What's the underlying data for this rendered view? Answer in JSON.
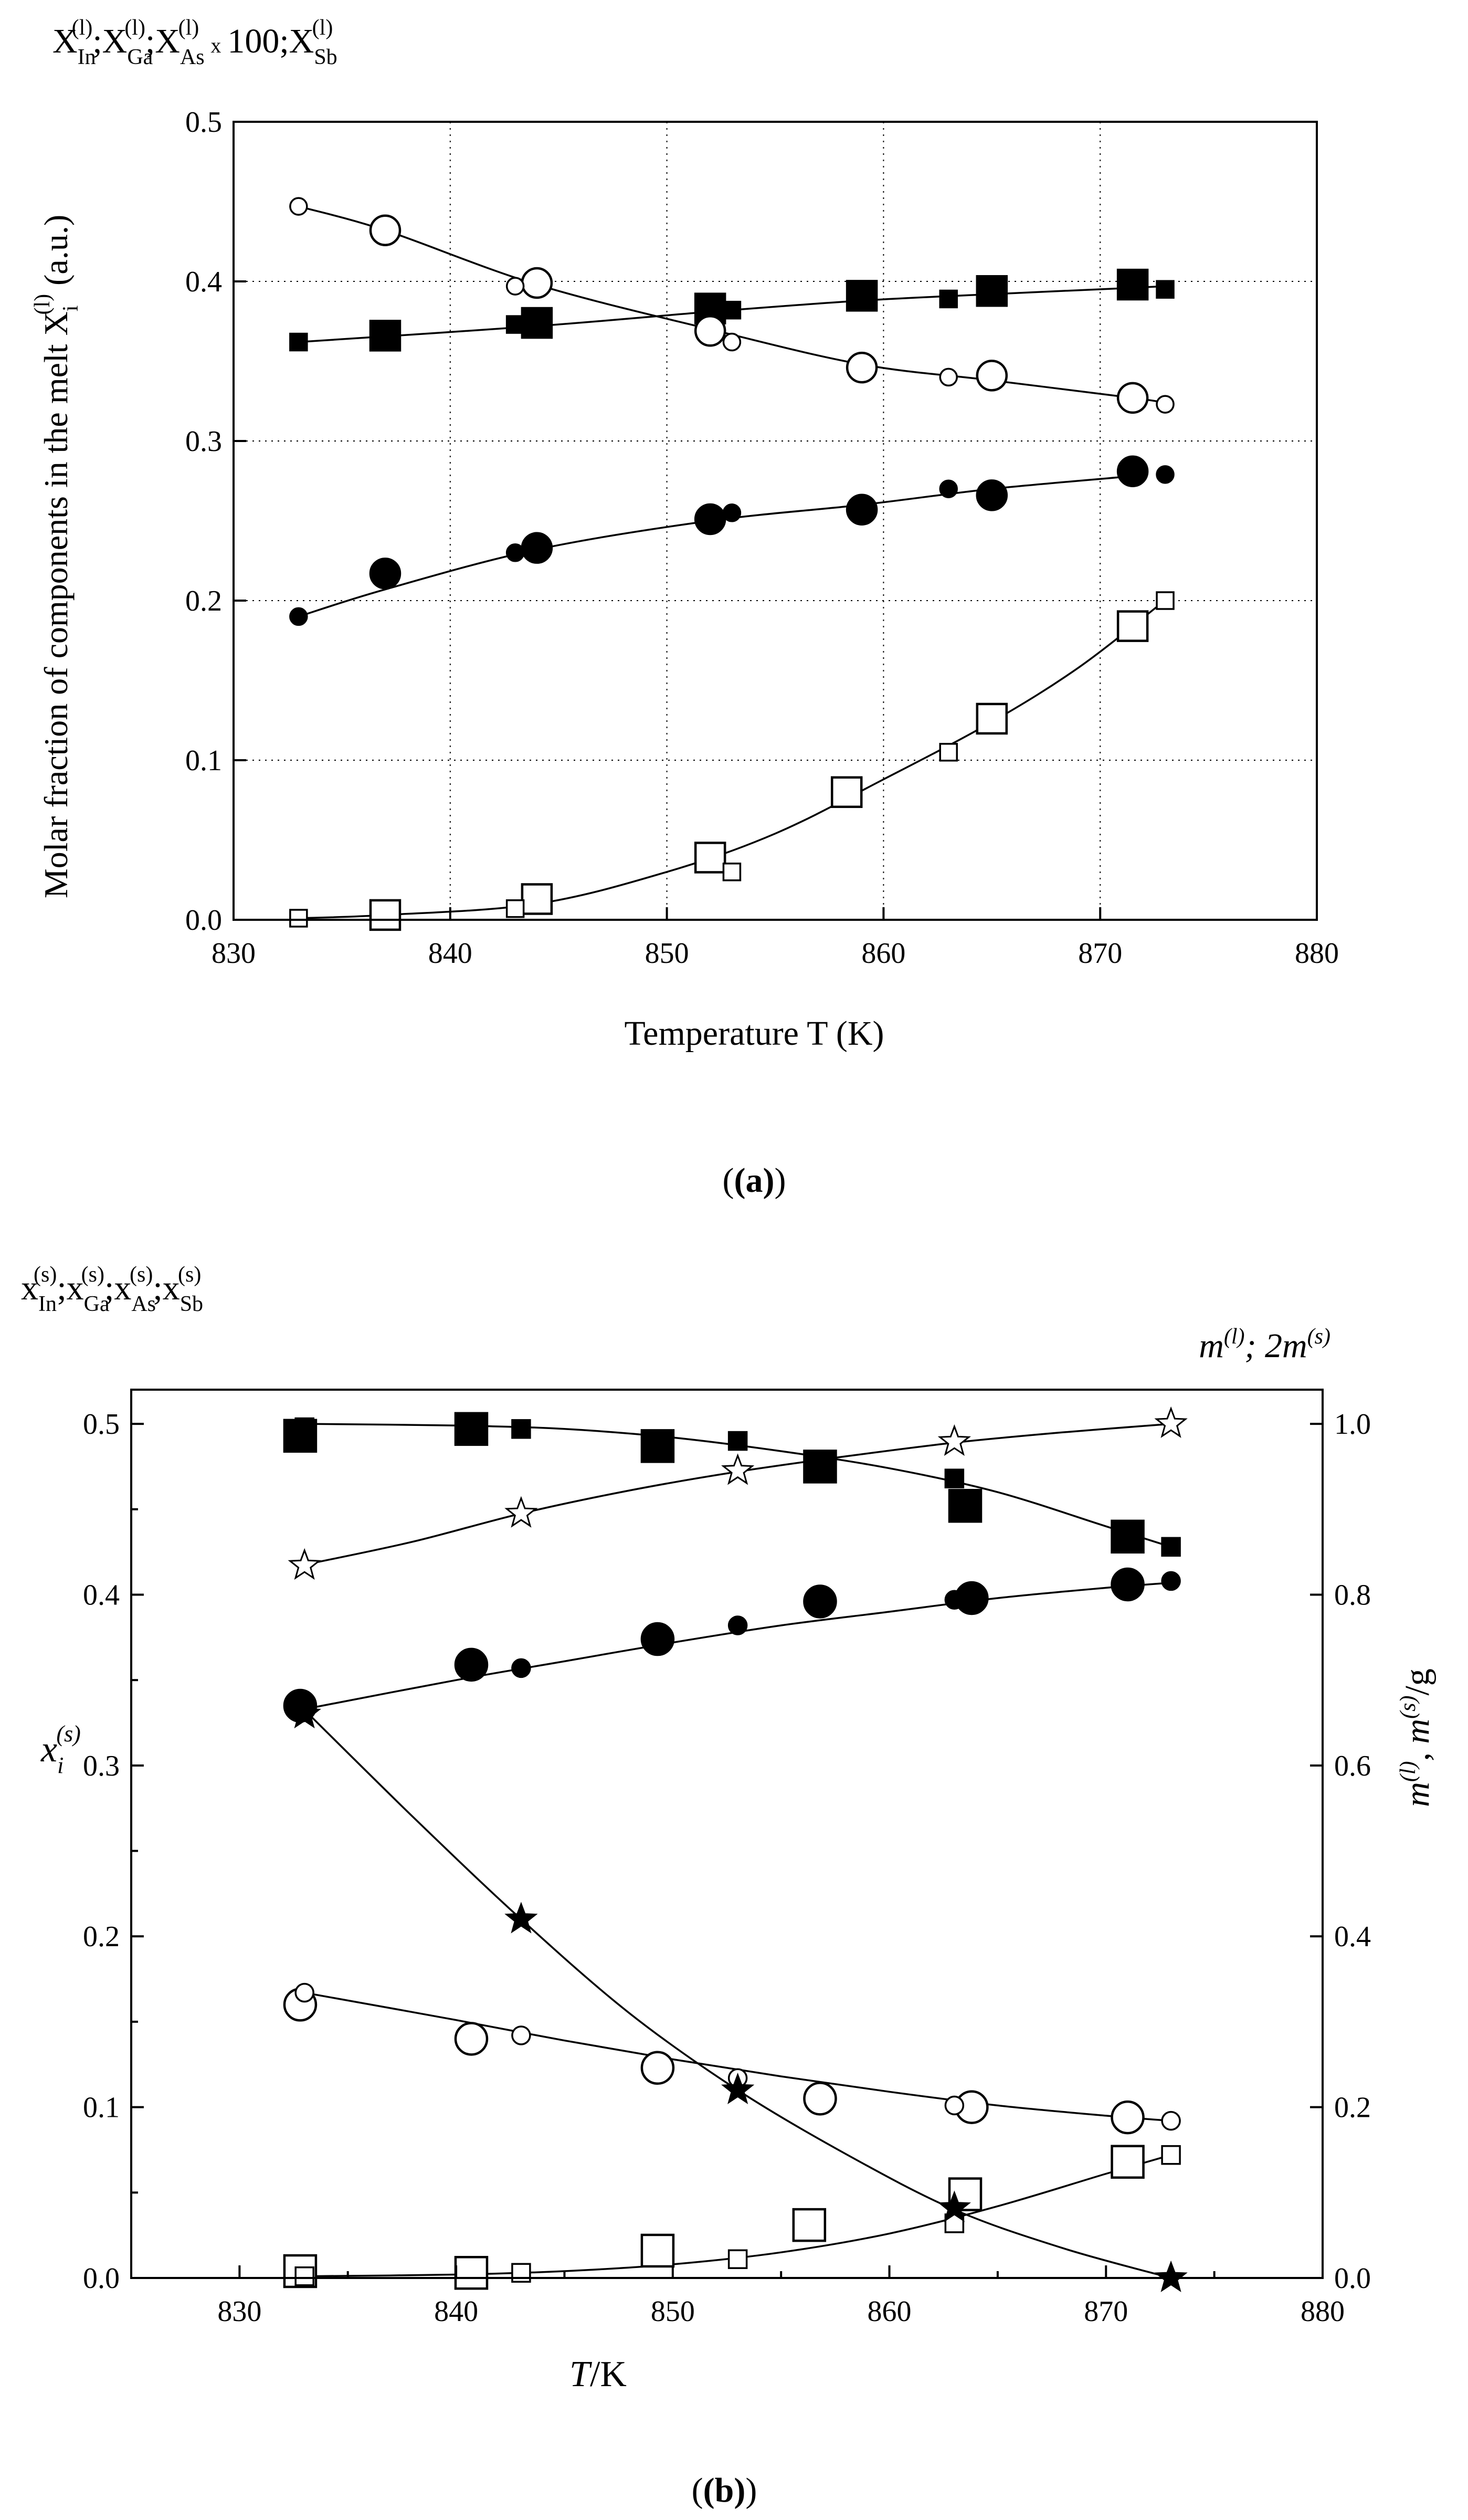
{
  "chart_data": [
    {
      "type": "scatter",
      "panel_label": "(a)",
      "corner_label": "X_In^(l);X_Ga^(l);X_As^(l) x 100;X_Sb^(l)",
      "corner_label_parts": {
        "s1": "X",
        "sub1": "In",
        "sup1": "(l)",
        "s2": ";X",
        "sub2": "Ga",
        "sup2": "(l)",
        "s3": ";X",
        "sub3": "As",
        "sup3": "(l)",
        "mult": "x",
        "hundred": "100",
        "s4": ";X",
        "sub4": "Sb",
        "sup4": "(l)"
      },
      "xlabel": "Temperature T (K)",
      "ylabel": "Molar fraction of components in the melt X_i^(l) (a.u.)",
      "ylabel_parts": {
        "main": "Molar fraction of components in the melt X",
        "sub": "i",
        "sup": "(l)",
        "tail": " (a.u.)"
      },
      "xlim": [
        830,
        880
      ],
      "ylim": [
        0.0,
        0.5
      ],
      "xticks": [
        830,
        840,
        850,
        860,
        870,
        880
      ],
      "yticks": [
        0.0,
        0.1,
        0.2,
        0.3,
        0.4,
        0.5
      ],
      "ytick_labels": [
        "0.0",
        "0.1",
        "0.2",
        "0.3",
        "0.4",
        "0.5"
      ],
      "grid": true,
      "series": [
        {
          "name": "filled squares",
          "marker": "square",
          "fill": "filled",
          "curve": {
            "x": [
              833,
              844,
              852,
              859,
              865,
              871.5,
              873
            ],
            "y": [
              0.362,
              0.372,
              0.381,
              0.388,
              0.392,
              0.396,
              0.397
            ]
          },
          "small": {
            "x": [
              833,
              843,
              853,
              863,
              873
            ],
            "y": [
              0.362,
              0.373,
              0.382,
              0.389,
              0.395
            ]
          },
          "large": {
            "x": [
              837,
              844,
              852,
              859,
              865,
              871.5
            ],
            "y": [
              0.366,
              0.374,
              0.383,
              0.391,
              0.394,
              0.398
            ]
          }
        },
        {
          "name": "open circles",
          "marker": "circle",
          "fill": "open",
          "curve": {
            "x": [
              833,
              837,
              844,
              852,
              859,
              865,
              871.5,
              873
            ],
            "y": [
              0.447,
              0.432,
              0.398,
              0.37,
              0.348,
              0.338,
              0.327,
              0.324
            ]
          },
          "small": {
            "x": [
              833,
              843,
              853,
              863,
              873
            ],
            "y": [
              0.447,
              0.397,
              0.362,
              0.34,
              0.323
            ]
          },
          "large": {
            "x": [
              837,
              844,
              852,
              859,
              865,
              871.5
            ],
            "y": [
              0.432,
              0.399,
              0.369,
              0.346,
              0.341,
              0.327
            ]
          }
        },
        {
          "name": "filled circles",
          "marker": "circle",
          "fill": "filled",
          "curve": {
            "x": [
              833,
              837,
              844,
              852,
              859,
              865,
              871.5
            ],
            "y": [
              0.19,
              0.207,
              0.232,
              0.25,
              0.26,
              0.27,
              0.278
            ]
          },
          "small": {
            "x": [
              833,
              843,
              853,
              863,
              873
            ],
            "y": [
              0.19,
              0.23,
              0.255,
              0.27,
              0.279
            ]
          },
          "large": {
            "x": [
              837,
              844,
              852,
              859,
              865,
              871.5
            ],
            "y": [
              0.217,
              0.233,
              0.251,
              0.257,
              0.266,
              0.281
            ]
          }
        },
        {
          "name": "open squares",
          "marker": "square",
          "fill": "open",
          "curve": {
            "x": [
              833,
              837,
              844,
              850,
              855,
              860,
              865,
              869,
              872.7
            ],
            "y": [
              0.001,
              0.003,
              0.01,
              0.03,
              0.054,
              0.088,
              0.124,
              0.158,
              0.197
            ]
          },
          "small": {
            "x": [
              833,
              843,
              853,
              863,
              873
            ],
            "y": [
              0.001,
              0.007,
              0.03,
              0.105,
              0.2
            ]
          },
          "large": {
            "x": [
              837,
              844,
              852,
              858.3,
              865,
              871.5
            ],
            "y": [
              0.003,
              0.013,
              0.039,
              0.08,
              0.126,
              0.184
            ]
          }
        }
      ]
    },
    {
      "type": "scatter",
      "panel_label": "(b)",
      "corner_label": "x_In^(s);x_Ga^(s);x_As^(s);x_Sb^(s)",
      "corner_label_parts": {
        "s1": "x",
        "sub1": "In",
        "sup1": "(s)",
        "s2": ";x",
        "sub2": "Ga",
        "sup2": "(s)",
        "s3": ";x",
        "sub3": "As",
        "sup3": "(s)",
        "s4": ";x",
        "sub4": "Sb",
        "sup4": "(s)"
      },
      "right_corner_label": "m^(l); 2m^(s)",
      "right_corner_parts": {
        "m1": "m",
        "sup1": "(l)",
        "mid": "; 2m",
        "sup2": "(s)"
      },
      "xlabel": "T/K",
      "xlabel_parts": {
        "t": "T",
        "k": "/K"
      },
      "ylabel": "x_i^(s)",
      "ylabel_parts": {
        "x": "x",
        "sub": "i",
        "sup": "(s)"
      },
      "y2label": "m^(l), m^(s)/g",
      "y2label_parts": {
        "m1": "m",
        "sup1": "(l)",
        "mid": ", m",
        "sup2": "(s)",
        "tail": "/g"
      },
      "xlim": [
        825,
        880
      ],
      "ylim": [
        0.0,
        0.52
      ],
      "y2lim": [
        0.0,
        1.04
      ],
      "xticks": [
        830,
        840,
        850,
        860,
        870,
        880
      ],
      "yticks": [
        0.0,
        0.1,
        0.2,
        0.3,
        0.4,
        0.5
      ],
      "ytick_labels": [
        "0.0",
        "0.1",
        "0.2",
        "0.3",
        "0.4",
        "0.5"
      ],
      "y2ticks": [
        0.0,
        0.2,
        0.4,
        0.6,
        0.8,
        1.0
      ],
      "y2tick_labels": [
        "0.0",
        "0.2",
        "0.4",
        "0.6",
        "0.8",
        "1.0"
      ],
      "grid": false,
      "series": [
        {
          "name": "filled squares",
          "marker": "square",
          "fill": "filled",
          "curve": {
            "x": [
              833,
              840,
              845,
              850,
              855,
              860,
              865,
              870,
              873
            ],
            "y": [
              0.5,
              0.499,
              0.497,
              0.492,
              0.484,
              0.474,
              0.46,
              0.44,
              0.428
            ]
          },
          "small": {
            "x": [
              833,
              843,
              853,
              863,
              873
            ],
            "y": [
              0.498,
              0.497,
              0.49,
              0.468,
              0.428
            ]
          },
          "large": {
            "x": [
              832.8,
              840.7,
              849.3,
              856.8,
              863.5,
              871
            ],
            "y": [
              0.493,
              0.497,
              0.487,
              0.475,
              0.452,
              0.434
            ]
          }
        },
        {
          "name": "filled circles",
          "marker": "circle",
          "fill": "filled",
          "curve": {
            "x": [
              833,
              840,
              845,
              850,
              855,
              860,
              865,
              870,
              873
            ],
            "y": [
              0.333,
              0.35,
              0.361,
              0.372,
              0.382,
              0.39,
              0.398,
              0.404,
              0.407
            ]
          },
          "small": {
            "x": [
              833,
              843,
              853,
              863,
              873
            ],
            "y": [
              0.333,
              0.357,
              0.382,
              0.397,
              0.408
            ]
          },
          "large": {
            "x": [
              832.8,
              840.7,
              849.3,
              856.8,
              863.8,
              871
            ],
            "y": [
              0.335,
              0.359,
              0.374,
              0.396,
              0.398,
              0.406
            ]
          }
        },
        {
          "name": "open circles",
          "marker": "circle",
          "fill": "open",
          "curve": {
            "x": [
              833,
              840,
              845,
              850,
              855,
              860,
              865,
              870,
              873
            ],
            "y": [
              0.167,
              0.151,
              0.139,
              0.128,
              0.118,
              0.109,
              0.101,
              0.095,
              0.092
            ]
          },
          "small": {
            "x": [
              833,
              843,
              853,
              863,
              873
            ],
            "y": [
              0.167,
              0.142,
              0.117,
              0.101,
              0.092
            ]
          },
          "large": {
            "x": [
              832.8,
              840.7,
              849.3,
              856.8,
              863.8,
              871
            ],
            "y": [
              0.16,
              0.14,
              0.123,
              0.105,
              0.1,
              0.094
            ]
          }
        },
        {
          "name": "open squares",
          "marker": "square",
          "fill": "open",
          "curve": {
            "x": [
              833,
              840,
              845,
              850,
              855,
              860,
              865,
              870,
              873
            ],
            "y": [
              0.001,
              0.002,
              0.004,
              0.008,
              0.015,
              0.026,
              0.042,
              0.061,
              0.072
            ]
          },
          "small": {
            "x": [
              833,
              843,
              853,
              863,
              873
            ],
            "y": [
              0.001,
              0.003,
              0.011,
              0.032,
              0.072
            ]
          },
          "large": {
            "x": [
              832.8,
              840.7,
              849.3,
              856.3,
              863.5,
              871
            ],
            "y": [
              0.004,
              0.003,
              0.016,
              0.031,
              0.049,
              0.068
            ]
          }
        },
        {
          "name": "open stars",
          "marker": "star",
          "fill": "open",
          "axis": "right",
          "curve": {
            "x": [
              833,
              838,
              843,
              848,
              853,
              858,
              863,
              868,
              873
            ],
            "y": [
              0.835,
              0.862,
              0.895,
              0.922,
              0.944,
              0.962,
              0.978,
              0.99,
              1.0
            ]
          },
          "small": {
            "x": [
              833,
              843,
              853,
              863,
              873
            ],
            "y": [
              0.834,
              0.895,
              0.945,
              0.979,
              1.0
            ]
          },
          "large": {
            "x": [],
            "y": []
          }
        },
        {
          "name": "filled stars",
          "marker": "star",
          "fill": "filled",
          "axis": "right",
          "curve": {
            "x": [
              833,
              838,
              843,
              848,
              853,
              858,
              863,
              868,
              873
            ],
            "y": [
              0.665,
              0.54,
              0.42,
              0.31,
              0.22,
              0.145,
              0.08,
              0.035,
              0.0
            ]
          },
          "small": {
            "x": [
              833,
              843,
              853,
              863,
              873
            ],
            "y": [
              0.66,
              0.42,
              0.22,
              0.082,
              0.0
            ]
          },
          "large": {
            "x": [],
            "y": []
          }
        }
      ]
    }
  ]
}
